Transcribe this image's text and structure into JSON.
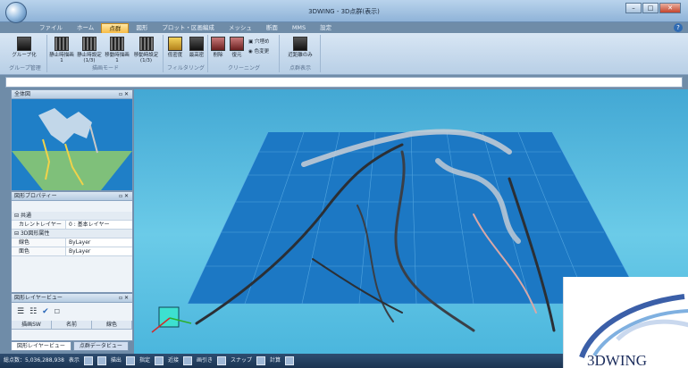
{
  "window": {
    "title": "3DWING - 3D点群(表示)"
  },
  "tabs": [
    "ファイル",
    "ホーム",
    "点群",
    "図形",
    "プロット・区画編成",
    "メッシュ",
    "断面",
    "MMS",
    "設定"
  ],
  "active_tab": "点群",
  "ribbon": {
    "groups": [
      "グループ管理",
      "描画モード",
      "フィルタリング",
      "クリーニング",
      "点群表示"
    ],
    "buttons": [
      "グループ化",
      "静止時描画1",
      "静止時設定(1/3)",
      "移動時描画1",
      "移動時設定(1/3)",
      "低密度",
      "最高密",
      "削除",
      "復元",
      "近距離のみ"
    ],
    "small": [
      "穴埋め",
      "色変更"
    ]
  },
  "overview": {
    "title": "全体図"
  },
  "properties": {
    "title": "図形プロパティー",
    "sections": [
      "共通",
      "3D図形属性"
    ],
    "rows": [
      {
        "key": "カレントレイヤー",
        "value": "0 : 基本レイヤー"
      },
      {
        "key": "線色",
        "value": "ByLayer"
      },
      {
        "key": "面色",
        "value": "ByLayer"
      }
    ]
  },
  "layers": {
    "title": "図形レイヤービュー",
    "columns": [
      "描画SW",
      "名前",
      "線色"
    ]
  },
  "bottom_tabs": [
    "図形レイヤービュー",
    "点群データビュー"
  ],
  "status": {
    "point_count": "総点数：5,036,288,938",
    "items": [
      "表示",
      "描出",
      "指定",
      "近接",
      "画引き",
      "スナップ",
      "計算"
    ]
  },
  "logo": {
    "text": "3DWING"
  },
  "colors": {
    "accent": "#f6b73c",
    "viewport": "#55bde3",
    "grid": "#1c78c4"
  }
}
